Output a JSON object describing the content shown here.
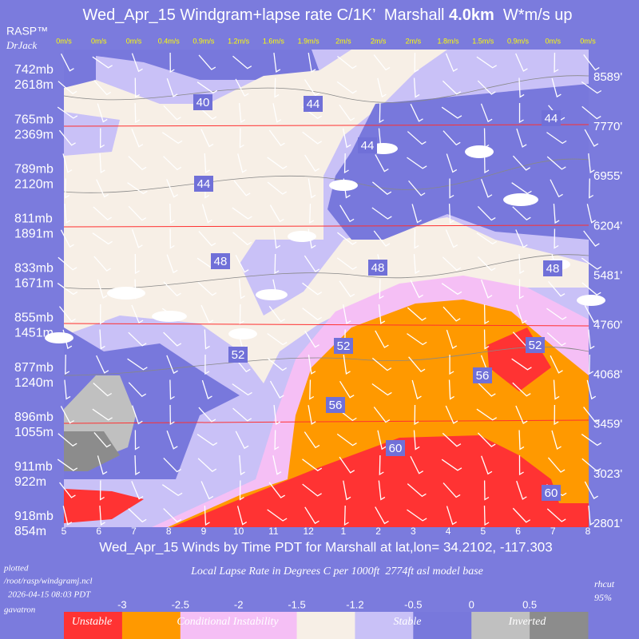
{
  "header": {
    "title": "Wed_Apr_15 Windgram+lapse rate C/1K’  Marshall ",
    "title_bold": "4.0km",
    "title_end": "  W*m/s up",
    "brand": "RASP™",
    "author": "DrJack"
  },
  "plot": {
    "hours": [
      "5",
      "6",
      "7",
      "8",
      "9",
      "10",
      "11",
      "12",
      "1",
      "2",
      "3",
      "4",
      "5",
      "6",
      "7",
      "8"
    ],
    "w_star": [
      "0m/s",
      "0m/s",
      "0m/s",
      "0.4m/s",
      "0.9m/s",
      "1.2m/s",
      "1.6m/s",
      "1.9m/s",
      "2m/s",
      "2m/s",
      "2m/s",
      "1.8m/s",
      "1.5m/s",
      "0.9m/s",
      "0m/s",
      "0m/s"
    ],
    "left_levels": [
      [
        "742mb",
        "2618m"
      ],
      [
        "765mb",
        "2369m"
      ],
      [
        "789mb",
        "2120m"
      ],
      [
        "811mb",
        "1891m"
      ],
      [
        "833mb",
        "1671m"
      ],
      [
        "855mb",
        "1451m"
      ],
      [
        "877mb",
        "1240m"
      ],
      [
        "896mb",
        "1055m"
      ],
      [
        "911mb",
        "922m"
      ],
      [
        "918mb",
        "854m"
      ]
    ],
    "right_levels": [
      "8589'",
      "7770'",
      "6955'",
      "6204'",
      "5481'",
      "4760'",
      "4068'",
      "3459'",
      "3023'",
      "2801'"
    ],
    "contour_labels": [
      "40",
      "44",
      "44",
      "44",
      "44",
      "48",
      "48",
      "48",
      "52",
      "52",
      "52",
      "56",
      "56",
      "60",
      "60"
    ],
    "subtitle": "Wed_Apr_15 Winds by Time PDT for Marshall at lat,lon= 34.2102, -117.303"
  },
  "footer": {
    "plotted": "plotted",
    "path": "/root/rasp/windgramj.ncl",
    "date": "2026-04-15 08:03 PDT",
    "host": "gavatron",
    "legend_title": "Local Lapse Rate in Degrees C per 1000ft  2774ft asl model base",
    "rhcut": "rhcut",
    "rh": "95%"
  },
  "legend": {
    "ticks": [
      -3,
      -2.5,
      -2,
      -1.5,
      -1.2,
      -0.5,
      0,
      0.5
    ],
    "colors": [
      "#ff3333",
      "#ff9900",
      "#f5bff5",
      "#f5bff5",
      "#f7efe6",
      "#c9c1f7",
      "#7878dc",
      "#c0c0c0",
      "#8c8c8c"
    ],
    "classes": [
      "Unstable",
      "Conditional Instability",
      "Stable",
      "Inverted"
    ]
  }
}
